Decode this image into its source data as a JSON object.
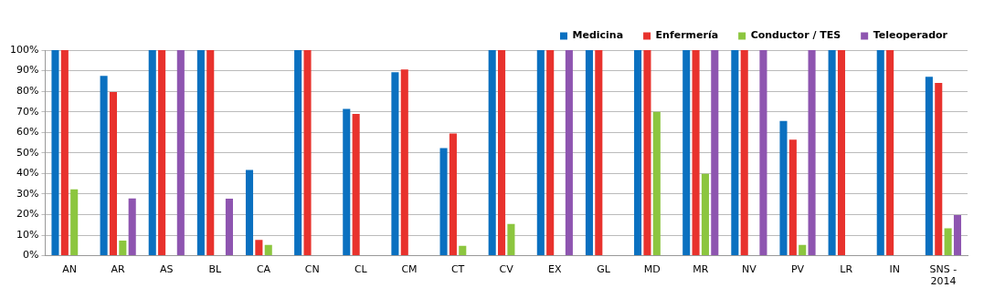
{
  "chart_data": {
    "type": "bar",
    "categories": [
      "AN",
      "AR",
      "AS",
      "BL",
      "CA",
      "CN",
      "CL",
      "CM",
      "CT",
      "CV",
      "EX",
      "GL",
      "MD",
      "MR",
      "NV",
      "PV",
      "LR",
      "IN",
      "SNS - 2014"
    ],
    "series": [
      {
        "name": "Medicina",
        "color": "#0a70c0",
        "values": [
          100,
          87.5,
          100,
          100,
          41.7,
          100,
          71.4,
          89.3,
          52.4,
          100,
          100,
          100,
          100,
          100,
          100,
          65.5,
          100,
          100,
          87
        ]
      },
      {
        "name": "Enfermería",
        "color": "#e8322d",
        "values": [
          100,
          79.6,
          100,
          100,
          7.7,
          100,
          69,
          90.6,
          59.4,
          100,
          100,
          100,
          100,
          100,
          100,
          56.5,
          100,
          100,
          84
        ]
      },
      {
        "name": "Conductor / TES",
        "color": "#8cc63f",
        "values": [
          32.3,
          7.4,
          null,
          null,
          5.3,
          null,
          null,
          null,
          4.8,
          15.5,
          0.3,
          null,
          70,
          39.8,
          null,
          5.3,
          null,
          null,
          13.3
        ]
      },
      {
        "name": "Teleoperador",
        "color": "#8e55b0",
        "values": [
          null,
          27.9,
          100,
          27.8,
          null,
          null,
          null,
          null,
          null,
          null,
          100,
          null,
          null,
          100,
          100,
          100,
          null,
          null,
          19.8
        ]
      }
    ],
    "ylim": [
      0,
      100
    ],
    "yticks": [
      {
        "value": 0,
        "label": "0%"
      },
      {
        "value": 10,
        "label": "10%"
      },
      {
        "value": 20,
        "label": "20%"
      },
      {
        "value": 30,
        "label": "30%"
      },
      {
        "value": 40,
        "label": "40%"
      },
      {
        "value": 50,
        "label": "50%"
      },
      {
        "value": 60,
        "label": "60%"
      },
      {
        "value": 70,
        "label": "70%"
      },
      {
        "value": 80,
        "label": "80%"
      },
      {
        "value": 90,
        "label": "90%"
      },
      {
        "value": 100,
        "label": "100%"
      }
    ],
    "grid": "y",
    "legend": "top right"
  }
}
